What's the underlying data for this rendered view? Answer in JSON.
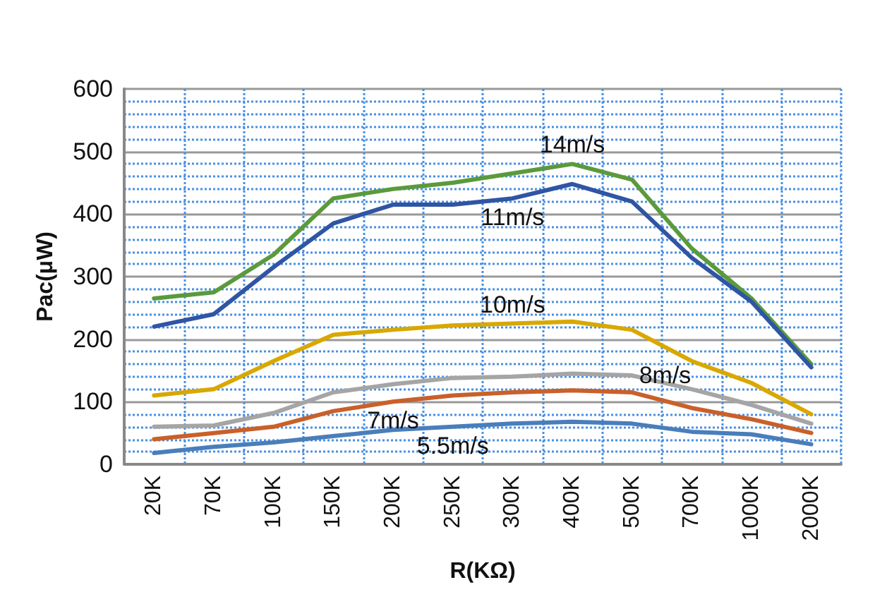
{
  "chart_data": {
    "type": "line",
    "xlabel": "R(KΩ)",
    "ylabel": "Pac(μW)",
    "categories": [
      "20K",
      "70K",
      "100K",
      "150K",
      "200K",
      "250K",
      "300K",
      "400K",
      "500K",
      "700K",
      "1000K",
      "2000K"
    ],
    "series": [
      {
        "name": "14m/s",
        "color": "#5b9a3c",
        "values": [
          265,
          275,
          335,
          425,
          440,
          450,
          465,
          480,
          455,
          345,
          265,
          160
        ]
      },
      {
        "name": "11m/s",
        "color": "#2f55a4",
        "values": [
          220,
          240,
          315,
          385,
          415,
          415,
          425,
          448,
          420,
          330,
          260,
          155
        ]
      },
      {
        "name": "10m/s",
        "color": "#d9a800",
        "values": [
          110,
          120,
          165,
          207,
          215,
          222,
          225,
          228,
          215,
          165,
          130,
          80
        ]
      },
      {
        "name": "8m/s",
        "color": "#a5a5a5",
        "values": [
          60,
          62,
          82,
          115,
          128,
          138,
          140,
          145,
          142,
          120,
          95,
          65
        ]
      },
      {
        "name": "7m/s",
        "color": "#c9602a",
        "values": [
          40,
          50,
          60,
          85,
          100,
          110,
          115,
          118,
          115,
          90,
          72,
          50
        ]
      },
      {
        "name": "5.5m/s",
        "color": "#4a7ebb",
        "values": [
          18,
          28,
          35,
          45,
          55,
          60,
          65,
          68,
          65,
          52,
          48,
          32
        ]
      }
    ],
    "ylim": [
      0,
      600
    ],
    "yticks": [
      0,
      100,
      200,
      300,
      400,
      500,
      600
    ],
    "grid": true,
    "legend": false,
    "marker": "none",
    "line_style": "solid"
  }
}
